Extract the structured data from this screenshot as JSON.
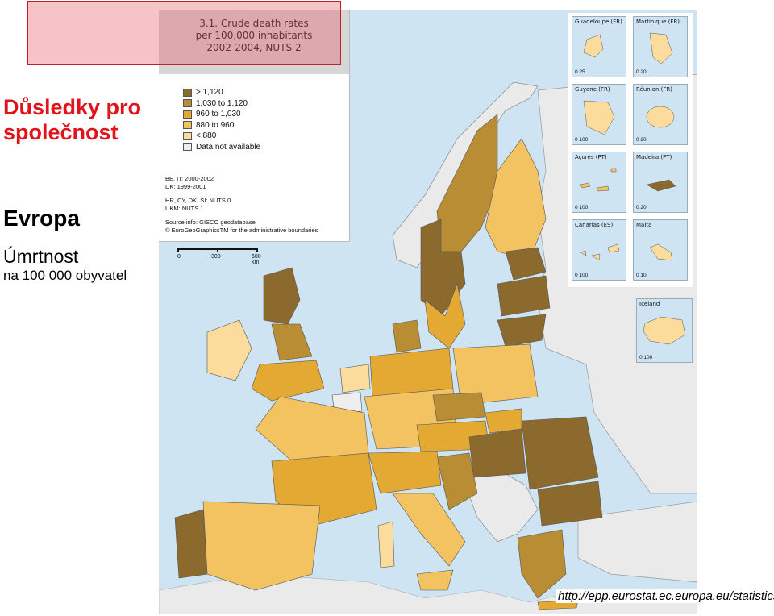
{
  "slide": {
    "title": "Důsledky pro společnost",
    "subtitle": "Evropa",
    "text1": "Úmrtnost",
    "text2": "na 100 000 obyvatel",
    "footer_url": "http://epp.eurostat.ec.europa.eu/statistics"
  },
  "map": {
    "title_lines": [
      "3.1. Crude death rates",
      "per 100,000 inhabitants",
      "2002-2004, NUTS 2"
    ],
    "legend": [
      {
        "label": "> 1,120",
        "color": "#8c6a2e"
      },
      {
        "label": "1,030 to 1,120",
        "color": "#b88d33"
      },
      {
        "label": "960 to 1,030",
        "color": "#e3a933"
      },
      {
        "label": "880 to   960",
        "color": "#f2c360"
      },
      {
        "label": "< 880",
        "color": "#fcdc9c"
      },
      {
        "label": "Data not available",
        "color": "#eeeeee"
      }
    ],
    "notes": [
      "BE, IT: 2000-2002",
      "DK: 1999-2001",
      "HR, CY, DK, SI: NUTS 0",
      "UKM: NUTS 1",
      "Source info: GISCO geodatabase",
      "© EuroGeoGraphicsTM for the administrative boundaries"
    ],
    "scale_labels": [
      "0",
      "300",
      "600 km"
    ],
    "insets": [
      {
        "name": "Guadeloupe (FR)",
        "scale": "0  25"
      },
      {
        "name": "Martinique (FR)",
        "scale": "0  20"
      },
      {
        "name": "Guyane (FR)",
        "scale": "0 100"
      },
      {
        "name": "Réunion (FR)",
        "scale": "0  20"
      },
      {
        "name": "Açores (PT)",
        "scale": "0 100"
      },
      {
        "name": "Madeira (PT)",
        "scale": "0  20"
      },
      {
        "name": "Canarias (ES)",
        "scale": "0 100"
      },
      {
        "name": "Malta",
        "scale": "0  10"
      }
    ],
    "iceland": {
      "name": "Iceland",
      "scale": "0 100"
    }
  }
}
